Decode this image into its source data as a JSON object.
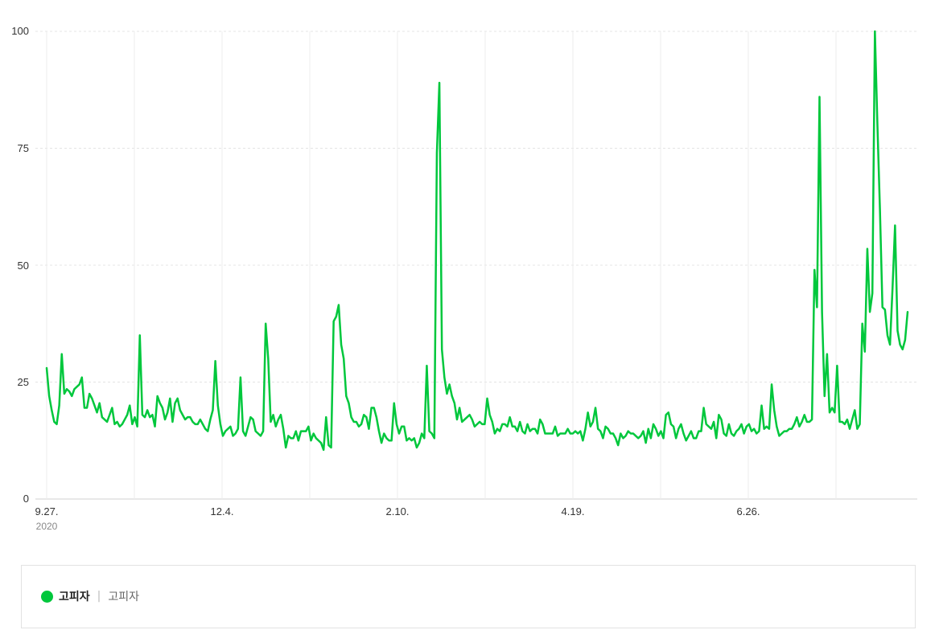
{
  "chart_data": {
    "type": "line",
    "y_ticks": [
      "100",
      "75",
      "50",
      "25",
      "0"
    ],
    "ylim": [
      0,
      100
    ],
    "x_ticks": [
      "9.27.",
      "12.4.",
      "2.10.",
      "4.19.",
      "6.26."
    ],
    "x_sub_label": "2020",
    "grid": true,
    "legend_position": "bottom",
    "series": [
      {
        "name": "고피자",
        "color": "#00c73c",
        "values": [
          28,
          22,
          19,
          16.5,
          16,
          20,
          31,
          22.5,
          23.5,
          23,
          22,
          23.5,
          24,
          24.5,
          26,
          19.5,
          19.5,
          22.5,
          21.5,
          20,
          18.5,
          20.5,
          17.5,
          17,
          16.5,
          18,
          19.5,
          16,
          16.5,
          15.5,
          16,
          17,
          18,
          20,
          16,
          17.5,
          15.5,
          35,
          18,
          17.5,
          19,
          17.5,
          18,
          15.5,
          22,
          20.5,
          19.5,
          17,
          18.5,
          21.5,
          16.5,
          20.5,
          21.5,
          19,
          18,
          17,
          17.5,
          17.5,
          16.5,
          16,
          16,
          17,
          16,
          15,
          14.5,
          17,
          19,
          29.5,
          20,
          16,
          13.5,
          14.5,
          15,
          15.5,
          13.5,
          14,
          15,
          26,
          14.5,
          13.5,
          15.5,
          17.5,
          17,
          14.5,
          14,
          13.5,
          14.5,
          37.5,
          30,
          16.5,
          18,
          15.5,
          17,
          18,
          15,
          11,
          13.5,
          13,
          13,
          14.5,
          12.5,
          14.5,
          14.5,
          14.5,
          15.5,
          12.5,
          14,
          13,
          12.5,
          12,
          10.5,
          17.5,
          11.5,
          11,
          38,
          39,
          41.5,
          33,
          30,
          22,
          20.5,
          17.5,
          16.5,
          16.5,
          15.5,
          16,
          18,
          17.5,
          15,
          19.5,
          19.5,
          17.5,
          14.5,
          12,
          14,
          13,
          12.5,
          12.5,
          20.5,
          16,
          14,
          15.5,
          15.5,
          12.5,
          13,
          12.5,
          13,
          11,
          12,
          14,
          13,
          28.5,
          14.5,
          14,
          13,
          74,
          89,
          32,
          26,
          22.5,
          24.5,
          22,
          20.5,
          17,
          19.5,
          16.5,
          17,
          17.5,
          18,
          17,
          15.5,
          16,
          16.5,
          16,
          16,
          21.5,
          18,
          16.5,
          14,
          15,
          14.5,
          16,
          16,
          15.5,
          17.5,
          15.5,
          15.5,
          14.5,
          16.5,
          14.5,
          14,
          16,
          14.5,
          15,
          15,
          14,
          17,
          16,
          14,
          14,
          14,
          14,
          15.5,
          13.5,
          14,
          14,
          14,
          15,
          14,
          14,
          14.5,
          14,
          14.5,
          12.5,
          15,
          18.5,
          15.5,
          16.5,
          19.5,
          15,
          14.5,
          13,
          15.5,
          15,
          14,
          14,
          13,
          11.5,
          14,
          13,
          13.5,
          14.5,
          14,
          14,
          13.5,
          13,
          13.5,
          14.5,
          12,
          15,
          13,
          16,
          15,
          13.5,
          14.5,
          13,
          18,
          18.5,
          16,
          15.5,
          13,
          15,
          16,
          14,
          12.5,
          13.5,
          14.5,
          13,
          13,
          14.5,
          14.5,
          19.5,
          16,
          15.5,
          15,
          16.5,
          13,
          18,
          17,
          14,
          13.5,
          16,
          14,
          13.5,
          14.5,
          15,
          16,
          14,
          15.5,
          16,
          14.5,
          15,
          14,
          14.5,
          20,
          15,
          15.5,
          15,
          24.5,
          19,
          15.5,
          13.5,
          14,
          14.5,
          14.5,
          15,
          15,
          16,
          17.5,
          15.5,
          16.5,
          18,
          16.5,
          16.5,
          17,
          49,
          41,
          86,
          40,
          22,
          31,
          18.5,
          19.5,
          18.5,
          28.5,
          16.5,
          16.5,
          16,
          17,
          15,
          17,
          19,
          15,
          16,
          37.5,
          31.5,
          53.5,
          40,
          44,
          100,
          80,
          62,
          41,
          40.5,
          35,
          33,
          45,
          58.5,
          36,
          33,
          32,
          34,
          40
        ]
      }
    ]
  },
  "legend": {
    "name": "고피자",
    "separator": "|",
    "keywords": "고피자"
  }
}
